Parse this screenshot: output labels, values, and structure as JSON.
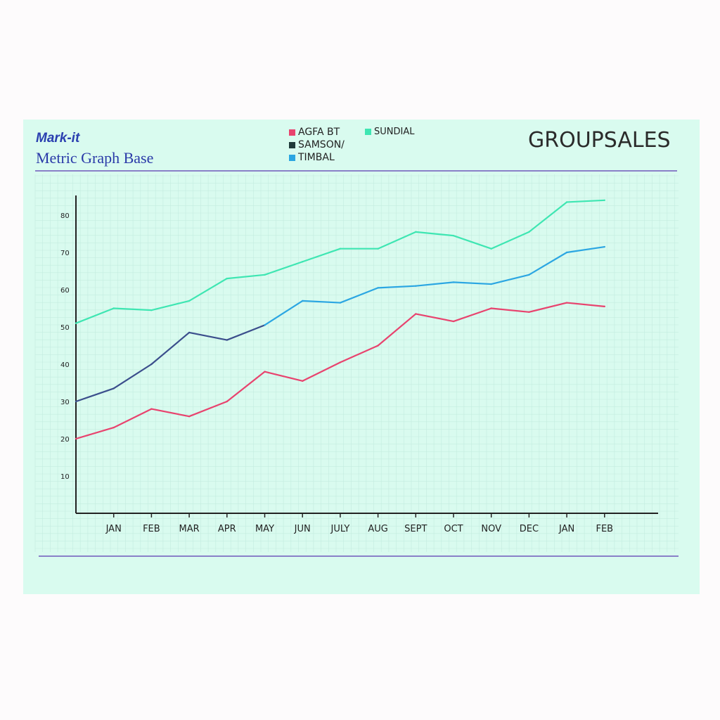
{
  "header": {
    "brand": "Mark-it",
    "subtitle": "Metric Graph Base"
  },
  "chart_data": {
    "type": "line",
    "title": "GROUPSALES",
    "categories": [
      "",
      "JAN",
      "FEB",
      "MAR",
      "APR",
      "MAY",
      "JUN",
      "JULY",
      "AUG",
      "SEPT",
      "OCT",
      "NOV",
      "DEC",
      "JAN",
      "FEB"
    ],
    "yticks": [
      10,
      20,
      30,
      40,
      50,
      60,
      70,
      80
    ],
    "ylim": [
      0,
      85
    ],
    "grid": true,
    "legend_position": "top",
    "legend": [
      "AGFA BT",
      "SAMSON/",
      "TIMBAL",
      "SUNDIAL"
    ],
    "series": [
      {
        "name": "AGFA BT",
        "color": "#e8436e",
        "values": [
          20,
          23,
          28,
          26,
          30,
          38,
          35.5,
          40.5,
          45,
          53.5,
          51.5,
          55,
          54,
          56.5,
          55.5
        ]
      },
      {
        "name": "SAMSON/",
        "color": "#3b4e8c",
        "values": [
          30,
          33.5,
          40,
          48.5,
          46.5,
          50.5,
          null,
          null,
          null,
          null,
          null,
          null,
          null,
          null,
          null
        ]
      },
      {
        "name": "TIMBAL",
        "color": "#2ba6e2",
        "values": [
          null,
          null,
          null,
          null,
          null,
          50.5,
          57,
          56.5,
          60.5,
          61,
          62,
          61.5,
          64,
          70,
          71.5
        ]
      },
      {
        "name": "SUNDIAL",
        "color": "#3ee6b2",
        "values": [
          51,
          55,
          54.5,
          57,
          63,
          64,
          67.5,
          71,
          71,
          75.5,
          74.5,
          71,
          75.5,
          83.5,
          84
        ]
      }
    ]
  }
}
